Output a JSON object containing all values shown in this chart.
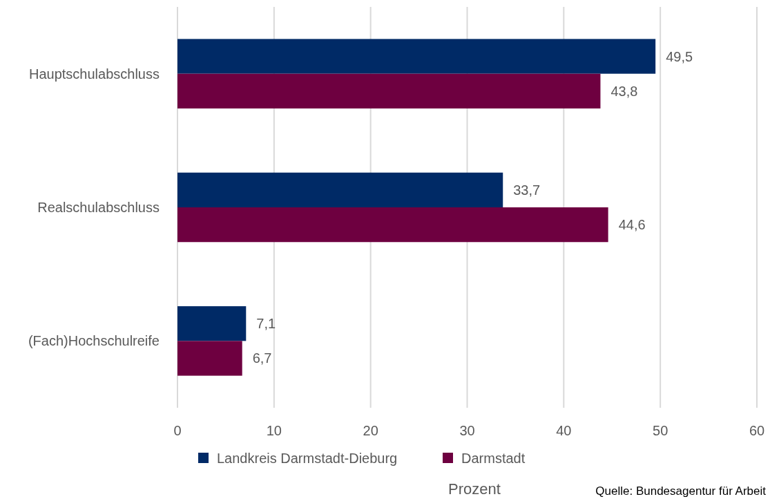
{
  "chart_data": {
    "type": "bar",
    "orientation": "horizontal",
    "categories": [
      "Hauptschulabschluss",
      "Realschulabschluss",
      "(Fach)Hochschulreife"
    ],
    "series": [
      {
        "name": "Landkreis Darmstadt-Dieburg",
        "color": "#002a66",
        "values": [
          49.5,
          33.7,
          7.1
        ],
        "value_labels": [
          "49,5",
          "33,7",
          "7,1"
        ]
      },
      {
        "name": "Darmstadt",
        "color": "#6e0040",
        "values": [
          43.8,
          44.6,
          6.7
        ],
        "value_labels": [
          "43,8",
          "44,6",
          "6,7"
        ]
      }
    ],
    "xlim": [
      0,
      60
    ],
    "xticks": [
      0,
      10,
      20,
      30,
      40,
      50,
      60
    ],
    "grid": "x",
    "legend": "bottom",
    "xlabel": "Prozent",
    "annotations": [
      "Quelle: Bundesagentur für Arbeit"
    ]
  }
}
